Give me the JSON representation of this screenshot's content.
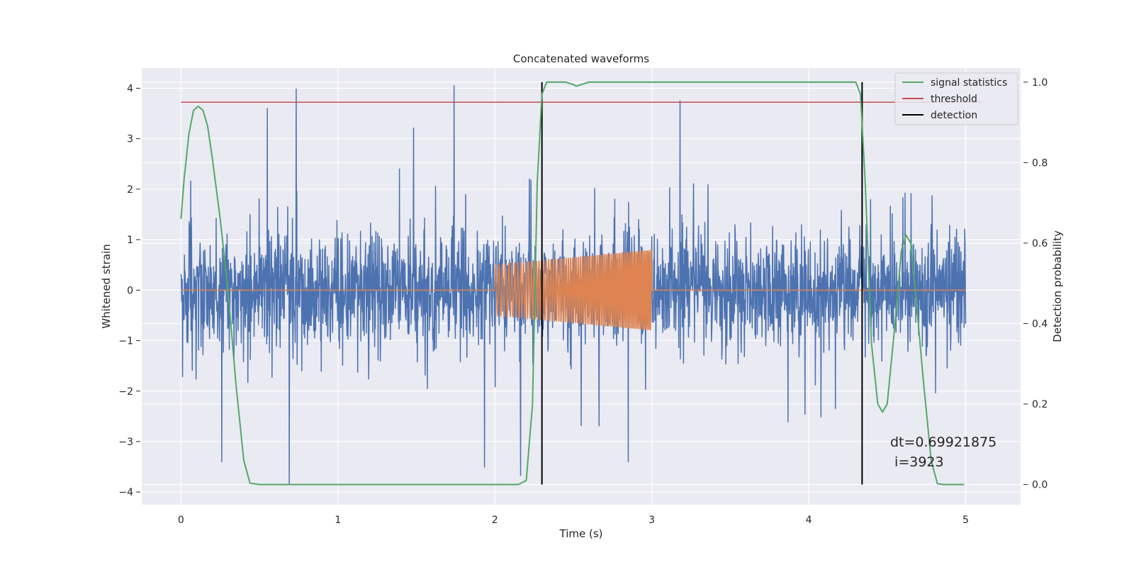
{
  "chart_data": {
    "type": "line",
    "title": "Concatenated waveforms",
    "xlabel": "Time (s)",
    "ylabel": "Whitened strain",
    "y2label": "Detection probability",
    "xlim": [
      -0.25,
      5.35
    ],
    "ylim": [
      -4.25,
      4.4
    ],
    "y2lim": [
      -0.05,
      1.035
    ],
    "xticks": [
      "0",
      "1",
      "2",
      "3",
      "4",
      "5"
    ],
    "yticks": [
      "4",
      "3",
      "2",
      "1",
      "0",
      "−1",
      "−2",
      "−3",
      "−4"
    ],
    "y2ticks": [
      "1.0",
      "0.8",
      "0.6",
      "0.4",
      "0.2",
      "0.0"
    ],
    "grid": true,
    "legend_position": "top-right",
    "series": [
      {
        "name": "",
        "axis": "left",
        "color": "#4c72b0",
        "description_kind": "noise",
        "sample_interval_s": 0.002,
        "x_range": [
          0,
          5
        ],
        "y_peak_positive": 4.05,
        "y_peak_negative": -3.85,
        "typical_band": [
          -1.2,
          1.2
        ],
        "peaks": [
          {
            "x": 0.55,
            "y": 3.6
          },
          {
            "x": 0.69,
            "y": -3.85
          },
          {
            "x": 1.74,
            "y": 4.05
          },
          {
            "x": 3.18,
            "y": 3.75
          },
          {
            "x": 2.85,
            "y": -3.4
          },
          {
            "x": 0.26,
            "y": -3.4
          }
        ]
      },
      {
        "name": "",
        "axis": "left",
        "color": "#dd8452",
        "description_kind": "chirp",
        "x_range": [
          0,
          5
        ],
        "signal_window": [
          2.0,
          3.0
        ],
        "amplitude_start": 0.5,
        "amplitude_end": 0.8,
        "frequency_start_hz": 45,
        "frequency_end_hz": 110
      },
      {
        "name": "signal statistics",
        "axis": "right",
        "color": "#55a868",
        "points": [
          [
            0.0,
            0.66
          ],
          [
            0.02,
            0.76
          ],
          [
            0.05,
            0.87
          ],
          [
            0.08,
            0.93
          ],
          [
            0.11,
            0.94
          ],
          [
            0.14,
            0.93
          ],
          [
            0.17,
            0.89
          ],
          [
            0.2,
            0.81
          ],
          [
            0.25,
            0.66
          ],
          [
            0.3,
            0.48
          ],
          [
            0.35,
            0.25
          ],
          [
            0.4,
            0.06
          ],
          [
            0.44,
            0.003
          ],
          [
            0.5,
            0.0
          ],
          [
            2.15,
            0.0
          ],
          [
            2.2,
            0.01
          ],
          [
            2.24,
            0.2
          ],
          [
            2.27,
            0.75
          ],
          [
            2.3,
            0.97
          ],
          [
            2.33,
            1.0
          ],
          [
            2.45,
            1.0
          ],
          [
            2.5,
            0.994
          ],
          [
            2.52,
            0.99
          ],
          [
            2.55,
            0.994
          ],
          [
            2.6,
            1.0
          ],
          [
            4.3,
            1.0
          ],
          [
            4.33,
            0.97
          ],
          [
            4.36,
            0.75
          ],
          [
            4.4,
            0.35
          ],
          [
            4.44,
            0.2
          ],
          [
            4.47,
            0.18
          ],
          [
            4.5,
            0.2
          ],
          [
            4.55,
            0.4
          ],
          [
            4.59,
            0.58
          ],
          [
            4.62,
            0.62
          ],
          [
            4.65,
            0.6
          ],
          [
            4.68,
            0.48
          ],
          [
            4.73,
            0.26
          ],
          [
            4.78,
            0.06
          ],
          [
            4.82,
            0.002
          ],
          [
            4.86,
            0.0
          ],
          [
            4.99,
            0.0
          ]
        ]
      },
      {
        "name": "threshold",
        "axis": "right",
        "color": "#c44e52",
        "value": 0.95,
        "x_range": [
          0,
          5.1
        ]
      },
      {
        "name": "detection",
        "axis": "right",
        "color": "#000000",
        "x_positions": [
          2.3,
          4.34
        ],
        "y_range": [
          0.0,
          1.0
        ]
      }
    ],
    "annotation": {
      "line1": "dt=0.69921875",
      "line2": " i=3923",
      "x": 4.5,
      "y": -3.0
    },
    "colors": {
      "plot_background": "#eaeaf2",
      "grid": "#ffffff",
      "text": "#262626"
    }
  }
}
